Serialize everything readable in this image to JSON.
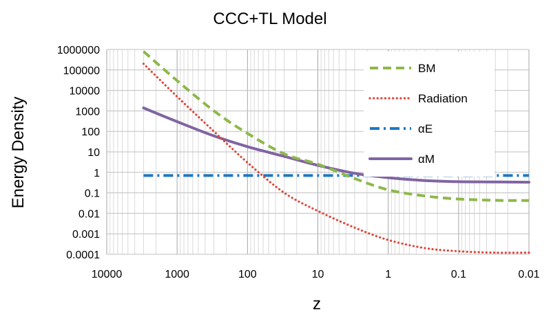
{
  "chart_data": {
    "type": "line",
    "title": "CCC+TL Model",
    "xlabel": "z",
    "ylabel": "Energy Density",
    "x_scale": "log",
    "y_scale": "log",
    "x_reversed": true,
    "xlim": [
      10000,
      0.01
    ],
    "ylim": [
      0.0001,
      1000000
    ],
    "x_ticks": [
      "10000",
      "1000",
      "100",
      "10",
      "1",
      "0.1",
      "0.01"
    ],
    "y_ticks": [
      "1000000",
      "100000",
      "10000",
      "1000",
      "100",
      "10",
      "1",
      "0.1",
      "0.01",
      "0.001",
      "0.0001"
    ],
    "grid": true,
    "legend_position": "top-right",
    "x": [
      3000,
      1000,
      300,
      100,
      30,
      10,
      3,
      1,
      0.3,
      0.1,
      0.03,
      0.01
    ],
    "series": [
      {
        "name": "BM",
        "color": "#8DB84A",
        "style": "dashed",
        "values": [
          800000,
          30000,
          1000,
          80,
          8,
          2.5,
          0.5,
          0.14,
          0.07,
          0.05,
          0.043,
          0.042
        ]
      },
      {
        "name": "Radiation",
        "color": "#E0453A",
        "style": "dotted",
        "values": [
          200000,
          5000,
          100,
          3,
          0.1,
          0.013,
          0.002,
          0.0005,
          0.0002,
          0.00014,
          0.00012,
          0.00012
        ]
      },
      {
        "name": "αE",
        "color": "#1F77C4",
        "style": "dash-dot",
        "values": [
          0.7,
          0.7,
          0.7,
          0.7,
          0.7,
          0.7,
          0.7,
          0.7,
          0.7,
          0.7,
          0.7,
          0.7
        ]
      },
      {
        "name": "αM",
        "color": "#8064A2",
        "style": "solid",
        "values": [
          1400,
          300,
          60,
          18,
          6,
          2.2,
          0.9,
          0.55,
          0.4,
          0.35,
          0.34,
          0.33
        ]
      }
    ]
  }
}
